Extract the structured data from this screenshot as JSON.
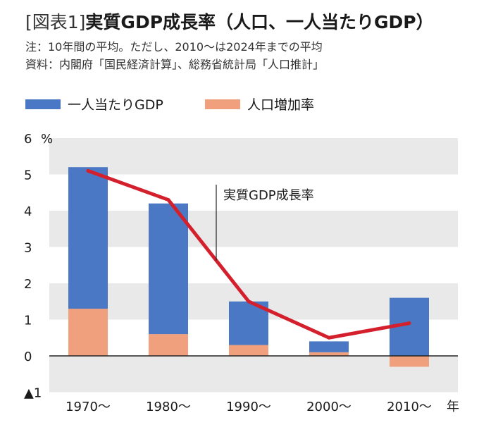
{
  "header": {
    "label": "[図表1]",
    "title": "実質GDP成長率（人口、一人当たりGDP）",
    "note": "注：10年間の平均。ただし、2010～は2024年までの平均",
    "source": "資料：内閣府「国民経済計算」、総務省統計局「人口推計」"
  },
  "chart_data": {
    "type": "bar",
    "stacked": true,
    "categories": [
      "1970～",
      "1980～",
      "1990～",
      "2000～",
      "2010～"
    ],
    "x_unit": "年",
    "y_unit": "%",
    "ylim": [
      -1,
      6
    ],
    "yticks": [
      {
        "value": 6,
        "label": "6"
      },
      {
        "value": 5,
        "label": "5"
      },
      {
        "value": 4,
        "label": "4"
      },
      {
        "value": 3,
        "label": "3"
      },
      {
        "value": 2,
        "label": "2"
      },
      {
        "value": 1,
        "label": "1"
      },
      {
        "value": 0,
        "label": "0"
      },
      {
        "value": -1,
        "label": "▲1"
      }
    ],
    "series": [
      {
        "name": "一人当たりGDP",
        "type": "bar",
        "color": "#4a78c4",
        "values": [
          3.9,
          3.6,
          1.2,
          0.3,
          1.6
        ]
      },
      {
        "name": "人口増加率",
        "type": "bar",
        "color": "#f0a07c",
        "values": [
          1.3,
          0.6,
          0.3,
          0.1,
          -0.3
        ]
      },
      {
        "name": "実質GDP成長率",
        "type": "line",
        "color": "#d4202c",
        "values": [
          5.1,
          4.3,
          1.5,
          0.5,
          0.9
        ]
      }
    ],
    "annotations": [
      {
        "text": "実質GDP成長率"
      }
    ],
    "grid": "alternating-bands"
  }
}
